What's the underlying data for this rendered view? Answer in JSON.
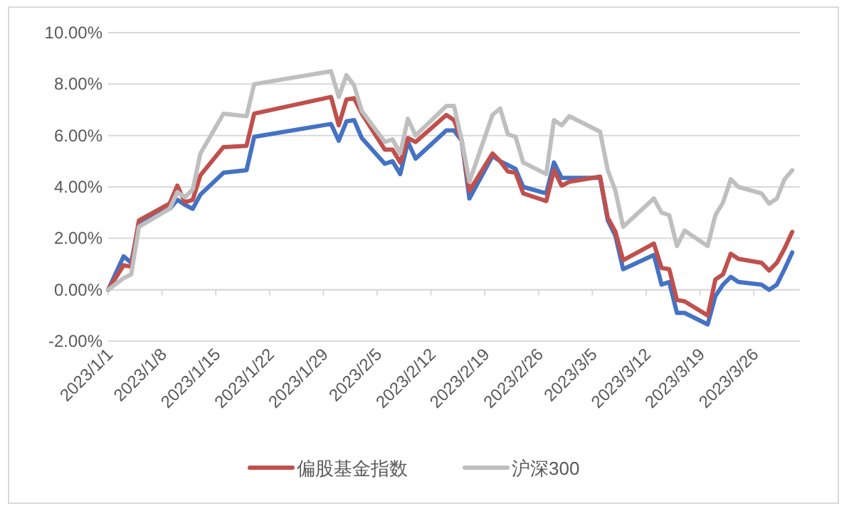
{
  "chart_data": {
    "type": "line",
    "x": [
      "2023-01-01",
      "2023-01-03",
      "2023-01-04",
      "2023-01-05",
      "2023-01-09",
      "2023-01-10",
      "2023-01-11",
      "2023-01-12",
      "2023-01-13",
      "2023-01-16",
      "2023-01-19",
      "2023-01-20",
      "2023-01-30",
      "2023-01-31",
      "2023-02-01",
      "2023-02-02",
      "2023-02-03",
      "2023-02-06",
      "2023-02-07",
      "2023-02-08",
      "2023-02-09",
      "2023-02-10",
      "2023-02-14",
      "2023-02-15",
      "2023-02-16",
      "2023-02-17",
      "2023-02-20",
      "2023-02-21",
      "2023-02-22",
      "2023-02-23",
      "2023-02-24",
      "2023-02-27",
      "2023-02-28",
      "2023-03-01",
      "2023-03-02",
      "2023-03-06",
      "2023-03-07",
      "2023-03-08",
      "2023-03-09",
      "2023-03-13",
      "2023-03-14",
      "2023-03-15",
      "2023-03-16",
      "2023-03-17",
      "2023-03-20",
      "2023-03-21",
      "2023-03-22",
      "2023-03-23",
      "2023-03-24",
      "2023-03-27",
      "2023-03-28",
      "2023-03-29",
      "2023-03-30",
      "2023-03-31"
    ],
    "series": [
      {
        "color": "#4472c4",
        "values": [
          0,
          1.3,
          1.05,
          2.6,
          3.15,
          3.5,
          3.3,
          3.15,
          3.7,
          4.55,
          4.65,
          5.95,
          6.45,
          5.8,
          6.55,
          6.6,
          5.9,
          4.9,
          5.0,
          4.5,
          5.75,
          5.1,
          6.2,
          6.2,
          5.8,
          3.55,
          5.2,
          5.0,
          4.85,
          4.7,
          4.0,
          3.75,
          4.95,
          4.35,
          4.35,
          4.35,
          2.7,
          2.1,
          0.8,
          1.35,
          0.2,
          0.3,
          -0.9,
          -0.9,
          -1.35,
          -0.25,
          0.2,
          0.5,
          0.3,
          0.2,
          0.0,
          0.2,
          0.8,
          1.45
        ]
      },
      {
        "name": "偏股基金指数",
        "color": "#c0504d",
        "values": [
          0,
          0.95,
          0.9,
          2.7,
          3.35,
          4.05,
          3.4,
          3.5,
          4.45,
          5.55,
          5.6,
          6.85,
          7.5,
          6.4,
          7.4,
          7.45,
          6.85,
          5.45,
          5.45,
          4.95,
          5.9,
          5.75,
          6.8,
          6.6,
          5.8,
          3.85,
          5.3,
          5.0,
          4.6,
          4.55,
          3.75,
          3.45,
          4.65,
          4.05,
          4.2,
          4.4,
          2.8,
          2.25,
          1.15,
          1.8,
          0.85,
          0.8,
          -0.4,
          -0.45,
          -1.0,
          0.4,
          0.6,
          1.4,
          1.2,
          1.05,
          0.75,
          1.05,
          1.6,
          2.25
        ]
      },
      {
        "name": "沪深300",
        "color": "#bfbfbf",
        "values": [
          0,
          0.45,
          0.6,
          2.45,
          3.15,
          3.8,
          3.6,
          3.9,
          5.3,
          6.85,
          6.75,
          8.0,
          8.5,
          7.5,
          8.35,
          7.95,
          6.95,
          5.75,
          5.85,
          5.3,
          6.65,
          6.0,
          7.15,
          7.15,
          5.8,
          4.2,
          6.8,
          7.05,
          6.05,
          5.95,
          4.95,
          4.5,
          6.6,
          6.4,
          6.75,
          6.15,
          4.65,
          3.85,
          2.45,
          3.55,
          3.0,
          2.9,
          1.7,
          2.3,
          1.7,
          2.9,
          3.4,
          4.3,
          4.0,
          3.75,
          3.35,
          3.55,
          4.3,
          4.65
        ]
      }
    ],
    "xlim": [
      "2023-01-01",
      "2023-04-01"
    ],
    "xticks": [
      {
        "value": "2023-01-01",
        "label": "2023/1/1"
      },
      {
        "value": "2023-01-08",
        "label": "2023/1/8"
      },
      {
        "value": "2023-01-15",
        "label": "2023/1/15"
      },
      {
        "value": "2023-01-22",
        "label": "2023/1/22"
      },
      {
        "value": "2023-01-29",
        "label": "2023/1/29"
      },
      {
        "value": "2023-02-05",
        "label": "2023/2/5"
      },
      {
        "value": "2023-02-12",
        "label": "2023/2/12"
      },
      {
        "value": "2023-02-19",
        "label": "2023/2/19"
      },
      {
        "value": "2023-02-26",
        "label": "2023/2/26"
      },
      {
        "value": "2023-03-05",
        "label": "2023/3/5"
      },
      {
        "value": "2023-03-12",
        "label": "2023/3/12"
      },
      {
        "value": "2023-03-19",
        "label": "2023/3/19"
      },
      {
        "value": "2023-03-26",
        "label": "2023/3/26"
      }
    ],
    "ylim": [
      -2,
      10
    ],
    "yticks": [
      {
        "value": -2,
        "label": "-2.00%"
      },
      {
        "value": 0,
        "label": "0.00%"
      },
      {
        "value": 2,
        "label": "2.00%"
      },
      {
        "value": 4,
        "label": "4.00%"
      },
      {
        "value": 6,
        "label": "6.00%"
      },
      {
        "value": 8,
        "label": "8.00%"
      },
      {
        "value": 10,
        "label": "10.00%"
      }
    ],
    "grid": "y",
    "legend": "bottom",
    "marker": "none",
    "line_style": "solid"
  }
}
